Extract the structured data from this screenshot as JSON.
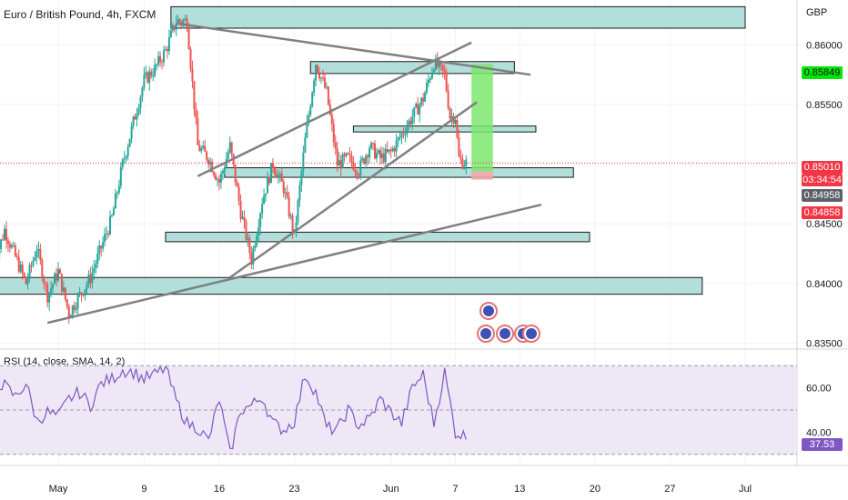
{
  "header": {
    "title": "Euro / British Pound, 4h, FXCM",
    "currency": "GBP",
    "rsi_label": "RSI (14, close, SMA, 14, 2)"
  },
  "colors": {
    "up": "#26a69a",
    "down": "#ef5350",
    "zone_fill": "#b2dfdb",
    "zone_border": "#1b1b1b",
    "trendline": "#808080",
    "rsi_line": "#7e57c2",
    "rsi_band": "#ede7f6",
    "target_green": "#7ce870",
    "stop_red": "#f4a6a6"
  },
  "price_tags": {
    "high": {
      "value": "0.85849",
      "color": "#00e600"
    },
    "current": {
      "value": "0.85010",
      "color": "#f23645"
    },
    "countdown": {
      "value": "03:34:54",
      "color": "#f23645"
    },
    "mid": {
      "value": "0.84958",
      "color": "#5d606b"
    },
    "low": {
      "value": "0.84858",
      "color": "#f23645"
    }
  },
  "rsi_tags": {
    "current": {
      "value": "37.53",
      "color": "#7e57c2"
    }
  },
  "chart_data": {
    "type": "candlestick",
    "title": "Euro / British Pound, 4h, FXCM",
    "y_range": [
      0.8345,
      0.863
    ],
    "y_ticks": [
      "0.86000",
      "0.85500",
      "0.85000",
      "0.84500",
      "0.84000",
      "0.83500"
    ],
    "y_tick_values": [
      0.86,
      0.855,
      0.85,
      0.845,
      0.84,
      0.835
    ],
    "x_range": [
      0,
      71
    ],
    "x_ticks": [
      {
        "label": "May",
        "day": 6
      },
      {
        "label": "9",
        "day": 14
      },
      {
        "label": "16",
        "day": 21
      },
      {
        "label": "23",
        "day": 28
      },
      {
        "label": "Jun",
        "day": 37
      },
      {
        "label": "7",
        "day": 43
      },
      {
        "label": "13",
        "day": 49
      },
      {
        "label": "20",
        "day": 56
      },
      {
        "label": "27",
        "day": 63
      },
      {
        "label": "Jul",
        "day": 70
      }
    ],
    "price_path_days": [
      0,
      1,
      3,
      4,
      5,
      6,
      7,
      9,
      10,
      11,
      12,
      13,
      14,
      15,
      16,
      17,
      18,
      19,
      20,
      21,
      22,
      23,
      24,
      25,
      26,
      27,
      28,
      29,
      30,
      31,
      32,
      33,
      34,
      35,
      36,
      37,
      38,
      39,
      40,
      41,
      42,
      42.5,
      43,
      43.3,
      43.6,
      44
    ],
    "price_path": [
      0.8415,
      0.8445,
      0.84,
      0.843,
      0.839,
      0.841,
      0.8375,
      0.8405,
      0.843,
      0.8455,
      0.85,
      0.8535,
      0.857,
      0.858,
      0.8595,
      0.862,
      0.862,
      0.8515,
      0.8505,
      0.8485,
      0.8515,
      0.846,
      0.842,
      0.847,
      0.85,
      0.848,
      0.844,
      0.852,
      0.8585,
      0.856,
      0.85,
      0.8505,
      0.8495,
      0.8515,
      0.8505,
      0.851,
      0.8525,
      0.854,
      0.8555,
      0.8585,
      0.8575,
      0.854,
      0.854,
      0.8505,
      0.8502,
      0.8501
    ],
    "zones": [
      {
        "y1": 0.8632,
        "y2": 0.8614,
        "d1": 16.5,
        "d2": 70
      },
      {
        "y1": 0.8586,
        "y2": 0.8576,
        "d1": 29.5,
        "d2": 48.5
      },
      {
        "y1": 0.8532,
        "y2": 0.8527,
        "d1": 33.5,
        "d2": 50.5
      },
      {
        "y1": 0.8497,
        "y2": 0.8489,
        "d1": 21.5,
        "d2": 54
      },
      {
        "y1": 0.8443,
        "y2": 0.8435,
        "d1": 16,
        "d2": 55.5
      },
      {
        "y1": 0.8405,
        "y2": 0.8391,
        "d1": 0,
        "d2": 66
      }
    ],
    "trendlines": [
      {
        "d1": 17,
        "y1": 0.8618,
        "d2": 50,
        "y2": 0.8575
      },
      {
        "d1": 19,
        "y1": 0.849,
        "d2": 44.5,
        "y2": 0.8602
      },
      {
        "d1": 22,
        "y1": 0.8405,
        "d2": 45,
        "y2": 0.8552
      },
      {
        "d1": 5,
        "y1": 0.8367,
        "d2": 51,
        "y2": 0.8466
      }
    ],
    "target_box": {
      "d1": 44.5,
      "d2": 46.5,
      "y1": 0.8584,
      "y2": 0.8494
    },
    "stop_box": {
      "d1": 44.5,
      "d2": 46.5,
      "y1": 0.8494,
      "y2": 0.8487
    },
    "rsi": {
      "y_range": [
        25,
        75
      ],
      "y_ticks": [
        "60.00",
        "40.00"
      ],
      "y_tick_values": [
        60,
        40
      ],
      "upper_band": 70,
      "lower_band": 30,
      "mid_band": 50,
      "path_days": [
        0,
        1,
        2,
        3,
        4,
        5,
        6,
        7,
        8,
        9,
        10,
        11,
        12,
        13,
        14,
        15,
        16,
        17,
        18,
        19,
        20,
        21,
        22,
        23,
        24,
        25,
        26,
        27,
        28,
        29,
        30,
        31,
        32,
        33,
        34,
        35,
        36,
        37,
        38,
        39,
        40,
        41,
        42,
        43,
        44
      ],
      "values": [
        63,
        61,
        56,
        62,
        45,
        49,
        47,
        55,
        58,
        52,
        62,
        64,
        68,
        67,
        64,
        66,
        69,
        54,
        44,
        42,
        36,
        55,
        30,
        50,
        52,
        56,
        44,
        41,
        45,
        66,
        58,
        42,
        41,
        50,
        43,
        46,
        55,
        49,
        44,
        60,
        66,
        44,
        67,
        40,
        38
      ],
      "current": 37.53
    }
  }
}
